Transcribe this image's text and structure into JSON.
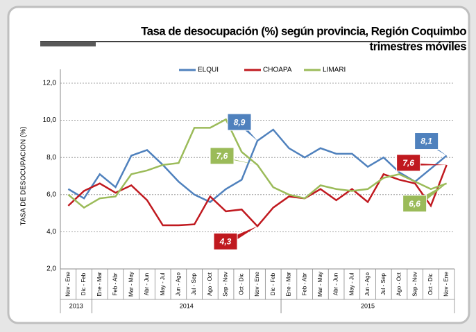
{
  "chart_data": {
    "type": "line",
    "title": "Tasa de desocupación (%) según provincia, Región Coquimbo",
    "subtitle": "trimestres móviles",
    "y_label": "TASA DE DESOCUPACION (%)",
    "categories": [
      "Nov - Ene",
      "Dic - Feb",
      "Ene - Mar",
      "Feb - Abr",
      "Mar - May",
      "Abr - Jun",
      "May - Jul",
      "Jun - Ago",
      "Jul - Sep",
      "Ago - Oct",
      "Sep - Nov",
      "Oct - Dic",
      "Nov - Ene",
      "Dic - Feb",
      "Ene - Mar",
      "Feb - Abr",
      "Mar - May",
      "Abr - Jun",
      "May - Jul",
      "Jun - Ago",
      "Jul - Sep",
      "Ago - Oct",
      "Sep - Nov",
      "Oct - Dic",
      "Nov - Ene"
    ],
    "year_groups": [
      {
        "label": "2013",
        "count": 2
      },
      {
        "label": "2014",
        "count": 12
      },
      {
        "label": "2015",
        "count": 11
      }
    ],
    "series": [
      {
        "name": "ELQUI",
        "color": "#4f81bd",
        "values": [
          6.3,
          5.8,
          7.1,
          6.4,
          8.1,
          8.4,
          7.6,
          6.7,
          6.0,
          5.6,
          6.3,
          6.8,
          8.9,
          9.5,
          8.5,
          8.0,
          8.5,
          8.2,
          8.2,
          7.5,
          8.0,
          7.2,
          6.7,
          7.4,
          8.1
        ],
        "value_labels": [
          null,
          null,
          null,
          null,
          null,
          null,
          null,
          null,
          null,
          null,
          null,
          null,
          "8,9",
          null,
          null,
          null,
          null,
          null,
          null,
          null,
          null,
          null,
          null,
          null,
          "8,1"
        ]
      },
      {
        "name": "CHOAPA",
        "color": "#c0191f",
        "values": [
          5.4,
          6.2,
          6.6,
          6.1,
          6.5,
          5.7,
          4.35,
          4.35,
          4.4,
          5.9,
          5.1,
          5.2,
          4.3,
          5.3,
          5.9,
          5.8,
          6.3,
          5.7,
          6.3,
          5.6,
          7.1,
          6.8,
          6.6,
          5.4,
          7.6
        ],
        "value_labels": [
          null,
          null,
          null,
          null,
          null,
          null,
          null,
          null,
          null,
          null,
          null,
          null,
          "4,3",
          null,
          null,
          null,
          null,
          null,
          null,
          null,
          null,
          null,
          null,
          null,
          "7,6"
        ]
      },
      {
        "name": "LIMARI",
        "color": "#9bbb59",
        "values": [
          6.0,
          5.3,
          5.8,
          5.9,
          7.1,
          7.3,
          7.6,
          7.7,
          9.6,
          9.6,
          10.05,
          8.3,
          7.6,
          6.4,
          6.0,
          5.8,
          6.5,
          6.3,
          6.2,
          6.3,
          6.9,
          7.1,
          6.7,
          6.3,
          6.6
        ],
        "value_labels": [
          null,
          null,
          null,
          null,
          null,
          null,
          null,
          null,
          null,
          null,
          null,
          null,
          "7,6",
          null,
          null,
          null,
          null,
          null,
          null,
          null,
          null,
          null,
          null,
          null,
          "6,6"
        ]
      }
    ],
    "ylim": [
      2,
      12
    ],
    "yticks": [
      {
        "value": 2,
        "label": "2,0"
      },
      {
        "value": 4,
        "label": "4,0"
      },
      {
        "value": 6,
        "label": "6,0"
      },
      {
        "value": 8,
        "label": "8,0"
      },
      {
        "value": 10,
        "label": "10,0"
      },
      {
        "value": 12,
        "label": "12,0"
      }
    ],
    "grid": true,
    "legend": "top"
  }
}
